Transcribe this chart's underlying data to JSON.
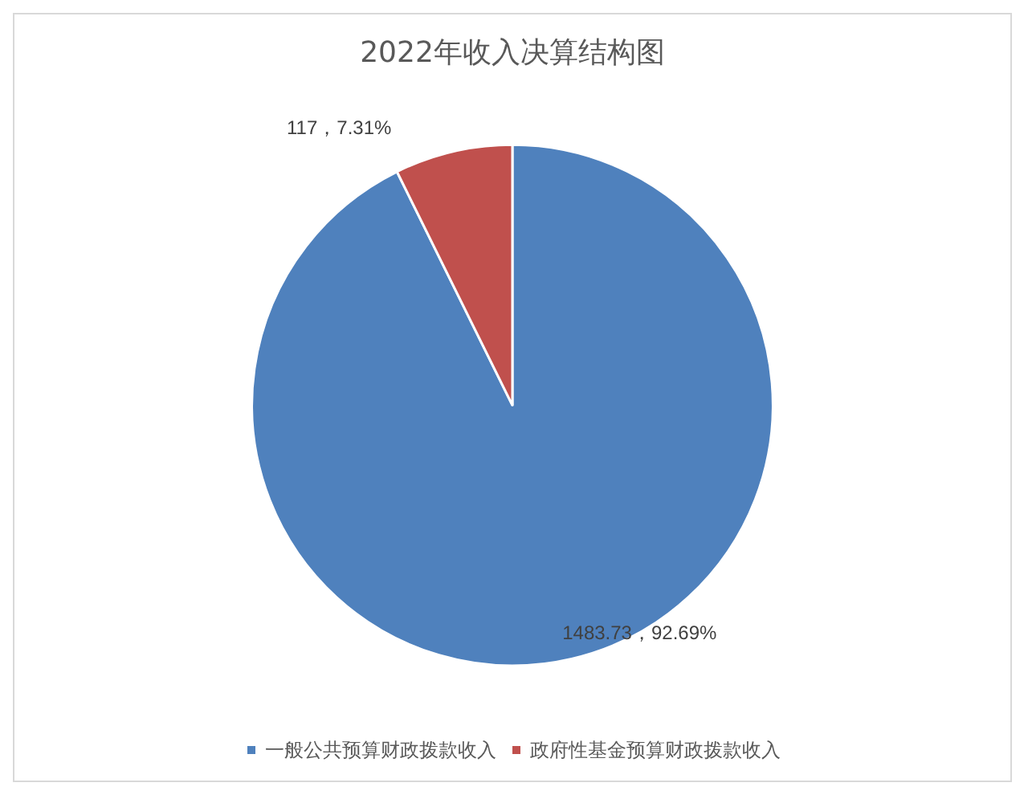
{
  "chart_data": {
    "type": "pie",
    "title": "2022年收入决算结构图",
    "categories": [
      "一般公共预算财政拨款收入",
      "政府性基金预算财政拨款收入"
    ],
    "values": [
      1483.73,
      117
    ],
    "value_labels": [
      "1483.73，92.69%",
      "117，7.31%"
    ],
    "colors": [
      "#4f81bd",
      "#c0504d"
    ],
    "legend": "bottom"
  }
}
